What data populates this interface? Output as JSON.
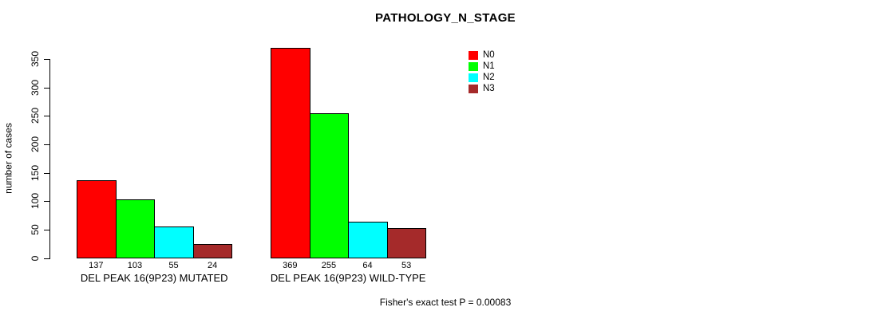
{
  "chart_data": {
    "type": "bar",
    "title": "PATHOLOGY_N_STAGE",
    "ylabel": "number of cases",
    "xlabel": "",
    "ylim": [
      0,
      350
    ],
    "yticks": [
      0,
      50,
      100,
      150,
      200,
      250,
      300,
      350
    ],
    "grid": false,
    "legend_position": "top-right",
    "categories": [
      "DEL PEAK 16(9P23) MUTATED",
      "DEL PEAK 16(9P23) WILD-TYPE"
    ],
    "series": [
      {
        "name": "N0",
        "color": "#FF0000",
        "values": [
          137,
          369
        ]
      },
      {
        "name": "N1",
        "color": "#00FF00",
        "values": [
          103,
          255
        ]
      },
      {
        "name": "N2",
        "color": "#00FFFF",
        "values": [
          55,
          64
        ]
      },
      {
        "name": "N3",
        "color": "#A52A2A",
        "values": [
          24,
          53
        ]
      }
    ],
    "bar_value_labels": true,
    "annotation": "Fisher's exact test P = 0.00083"
  },
  "colors": {
    "background": "#FFFFFF",
    "axis": "#000000",
    "text": "#000000"
  }
}
